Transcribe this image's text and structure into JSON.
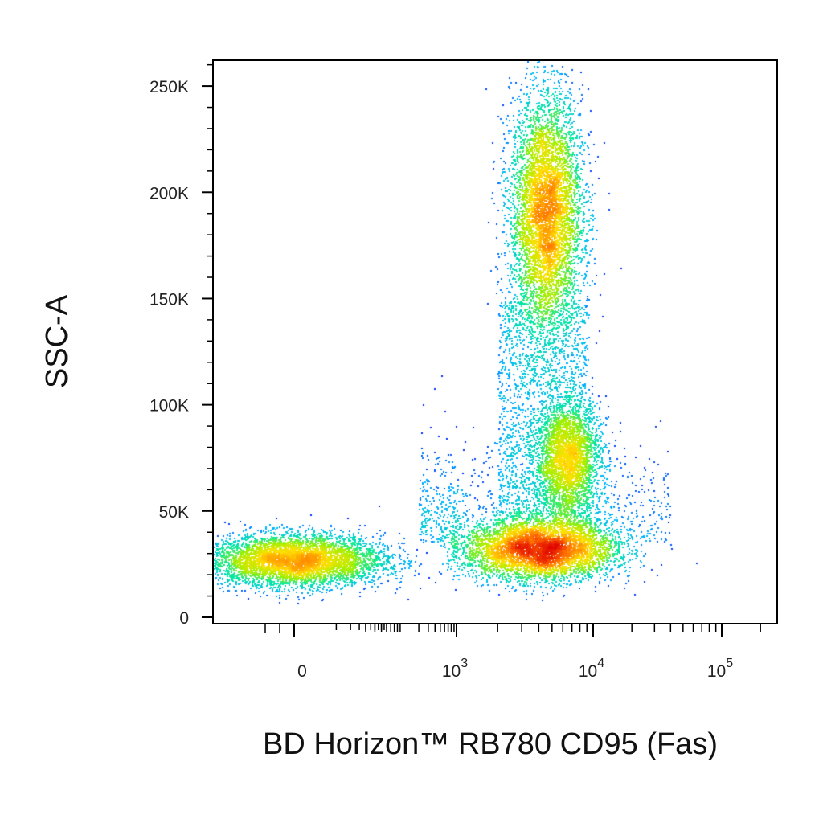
{
  "chart_data": {
    "type": "scatter",
    "subtype": "flow-cytometry-density-dot-plot",
    "xlabel": "BD Horizon™ RB780 CD95 (Fas)",
    "ylabel": "SSC-A",
    "x_scale": "biexponential",
    "x_ticks": [
      {
        "value": 0,
        "label": "0"
      },
      {
        "value": 1000,
        "base": "10",
        "exp": "3"
      },
      {
        "value": 10000,
        "base": "10",
        "exp": "4"
      },
      {
        "value": 100000,
        "base": "10",
        "exp": "5"
      }
    ],
    "y_ticks": [
      {
        "value": 0,
        "label": "0"
      },
      {
        "value": 50000,
        "label": "50K"
      },
      {
        "value": 100000,
        "label": "100K"
      },
      {
        "value": 150000,
        "label": "150K"
      },
      {
        "value": 200000,
        "label": "200K"
      },
      {
        "value": 250000,
        "label": "250K"
      }
    ],
    "ylim": [
      0,
      262144
    ],
    "color_scale": [
      "#0000ff",
      "#00b4ff",
      "#00e8a0",
      "#a0f000",
      "#ffe000",
      "#ff7000",
      "#e00000"
    ],
    "populations": [
      {
        "x_center": 4500,
        "y_center": 190000,
        "x_spread_decades": 0.13,
        "y_spread": 28000,
        "weight": 0.38
      },
      {
        "x_center": 6500,
        "y_center": 75000,
        "x_spread_decades": 0.12,
        "y_spread": 14000,
        "weight": 0.12
      },
      {
        "x_center": 4000,
        "y_center": 32000,
        "x_spread_decades": 0.28,
        "y_spread": 7000,
        "weight": 0.3
      },
      {
        "x_center": 0,
        "y_center": 27000,
        "x_spread_decades": 0.35,
        "y_spread": 6000,
        "weight": 0.2
      }
    ]
  }
}
